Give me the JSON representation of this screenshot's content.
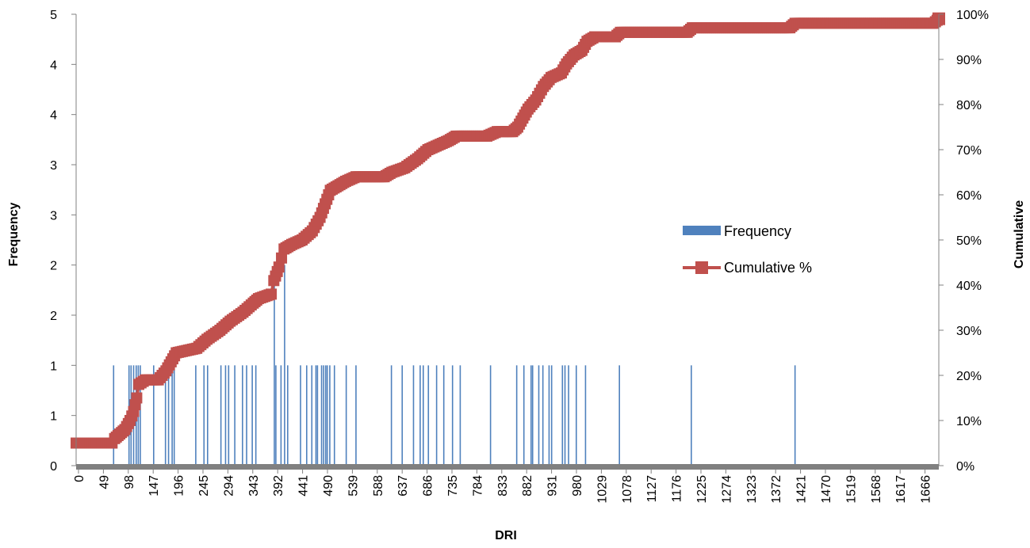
{
  "chart_data": {
    "type": "bar",
    "xlabel": "DRI",
    "ylabel": "Frequency",
    "y2label": "Cumulative",
    "x_tick_labels": [
      "0",
      "49",
      "98",
      "147",
      "196",
      "245",
      "294",
      "343",
      "392",
      "441",
      "490",
      "539",
      "588",
      "637",
      "686",
      "735",
      "784",
      "833",
      "882",
      "931",
      "980",
      "1029",
      "1078",
      "1127",
      "1176",
      "1225",
      "1274",
      "1323",
      "1372",
      "1421",
      "1470",
      "1519",
      "1568",
      "1617",
      "1666"
    ],
    "xlim": [
      0,
      1680
    ],
    "y_tick_labels": [
      "0",
      "1",
      "1",
      "2",
      "2",
      "3",
      "3",
      "4",
      "4",
      "5"
    ],
    "ylim": [
      0,
      4.5
    ],
    "y2_tick_labels": [
      "0%",
      "10%",
      "20%",
      "30%",
      "40%",
      "50%",
      "60%",
      "70%",
      "80%",
      "90%",
      "100%"
    ],
    "y2lim": [
      0,
      1
    ],
    "grid": false,
    "legend_position": "right-center",
    "series": [
      {
        "name": "Frequency",
        "kind": "bar",
        "color": "#4F81BD",
        "points": [
          [
            73,
            1
          ],
          [
            103,
            1
          ],
          [
            107,
            1
          ],
          [
            112,
            1
          ],
          [
            117,
            1
          ],
          [
            121,
            1
          ],
          [
            125,
            1
          ],
          [
            151,
            1
          ],
          [
            174,
            1
          ],
          [
            180,
            1
          ],
          [
            187,
            1
          ],
          [
            191,
            1
          ],
          [
            233,
            1
          ],
          [
            249,
            1
          ],
          [
            256,
            1
          ],
          [
            282,
            1
          ],
          [
            291,
            1
          ],
          [
            297,
            1
          ],
          [
            309,
            1
          ],
          [
            324,
            1
          ],
          [
            332,
            1
          ],
          [
            343,
            1
          ],
          [
            350,
            1
          ],
          [
            386,
            2
          ],
          [
            389,
            1
          ],
          [
            399,
            1
          ],
          [
            406,
            2
          ],
          [
            412,
            1
          ],
          [
            437,
            1
          ],
          [
            449,
            1
          ],
          [
            459,
            1
          ],
          [
            467,
            1
          ],
          [
            470,
            1
          ],
          [
            478,
            1
          ],
          [
            482,
            1
          ],
          [
            486,
            1
          ],
          [
            489,
            1
          ],
          [
            494,
            1
          ],
          [
            503,
            1
          ],
          [
            526,
            1
          ],
          [
            545,
            1
          ],
          [
            614,
            1
          ],
          [
            635,
            1
          ],
          [
            657,
            1
          ],
          [
            670,
            1
          ],
          [
            676,
            1
          ],
          [
            686,
            1
          ],
          [
            702,
            1
          ],
          [
            716,
            1
          ],
          [
            733,
            1
          ],
          [
            748,
            1
          ],
          [
            807,
            1
          ],
          [
            858,
            1
          ],
          [
            872,
            1
          ],
          [
            886,
            1
          ],
          [
            889,
            1
          ],
          [
            901,
            1
          ],
          [
            909,
            1
          ],
          [
            921,
            1
          ],
          [
            926,
            1
          ],
          [
            947,
            1
          ],
          [
            952,
            1
          ],
          [
            959,
            1
          ],
          [
            974,
            1
          ],
          [
            992,
            1
          ],
          [
            1058,
            1
          ],
          [
            1198,
            1
          ],
          [
            1400,
            1
          ]
        ]
      },
      {
        "name": "Cumulative %",
        "kind": "line",
        "color": "#C0504D",
        "marker": "square",
        "points": [
          [
            0,
            0.05
          ],
          [
            70,
            0.05
          ],
          [
            75,
            0.06
          ],
          [
            85,
            0.07
          ],
          [
            95,
            0.08
          ],
          [
            105,
            0.1
          ],
          [
            112,
            0.12
          ],
          [
            118,
            0.15
          ],
          [
            122,
            0.18
          ],
          [
            135,
            0.19
          ],
          [
            160,
            0.19
          ],
          [
            175,
            0.21
          ],
          [
            185,
            0.23
          ],
          [
            195,
            0.25
          ],
          [
            235,
            0.26
          ],
          [
            255,
            0.28
          ],
          [
            280,
            0.3
          ],
          [
            300,
            0.32
          ],
          [
            325,
            0.34
          ],
          [
            345,
            0.36
          ],
          [
            355,
            0.37
          ],
          [
            380,
            0.38
          ],
          [
            385,
            0.41
          ],
          [
            395,
            0.44
          ],
          [
            400,
            0.46
          ],
          [
            405,
            0.48
          ],
          [
            420,
            0.49
          ],
          [
            440,
            0.5
          ],
          [
            460,
            0.52
          ],
          [
            475,
            0.55
          ],
          [
            485,
            0.58
          ],
          [
            495,
            0.61
          ],
          [
            510,
            0.62
          ],
          [
            525,
            0.63
          ],
          [
            545,
            0.64
          ],
          [
            600,
            0.64
          ],
          [
            615,
            0.65
          ],
          [
            640,
            0.66
          ],
          [
            665,
            0.68
          ],
          [
            685,
            0.7
          ],
          [
            705,
            0.71
          ],
          [
            725,
            0.72
          ],
          [
            740,
            0.73
          ],
          [
            800,
            0.73
          ],
          [
            820,
            0.74
          ],
          [
            850,
            0.74
          ],
          [
            860,
            0.75
          ],
          [
            870,
            0.77
          ],
          [
            880,
            0.79
          ],
          [
            895,
            0.81
          ],
          [
            910,
            0.84
          ],
          [
            925,
            0.86
          ],
          [
            945,
            0.87
          ],
          [
            955,
            0.89
          ],
          [
            970,
            0.91
          ],
          [
            985,
            0.92
          ],
          [
            995,
            0.94
          ],
          [
            1010,
            0.95
          ],
          [
            1050,
            0.95
          ],
          [
            1060,
            0.96
          ],
          [
            1190,
            0.96
          ],
          [
            1200,
            0.97
          ],
          [
            1390,
            0.97
          ],
          [
            1400,
            0.98
          ],
          [
            1670,
            0.98
          ],
          [
            1680,
            0.99
          ]
        ]
      }
    ]
  }
}
